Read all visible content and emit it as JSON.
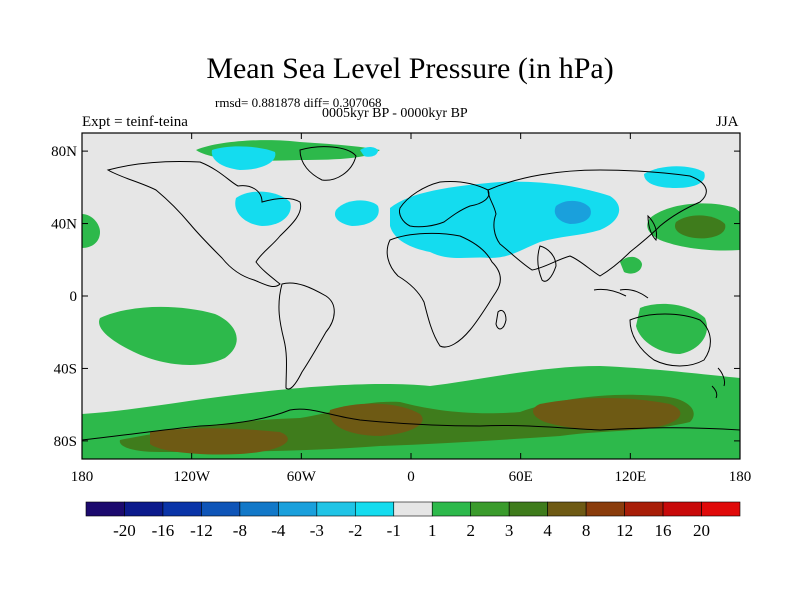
{
  "title": "Mean Sea Level Pressure (in hPa)",
  "stats_text": "rmsd= 0.881878 diff= 0.307068",
  "subtitle": "0005kyr BP - 0000kyr BP",
  "experiment_label": "Expt = teinf-teina",
  "season": "JJA",
  "lat_ticks": [
    "80N",
    "40N",
    "0",
    "40S",
    "80S"
  ],
  "lon_ticks": [
    "180",
    "120W",
    "60W",
    "0",
    "60E",
    "120E",
    "180"
  ],
  "colorbar": {
    "labels": [
      "-20",
      "-16",
      "-12",
      "-8",
      "-4",
      "-3",
      "-2",
      "-1",
      "1",
      "2",
      "3",
      "4",
      "8",
      "12",
      "16",
      "20"
    ],
    "colors": [
      "#1c0a6e",
      "#0c1a8c",
      "#0a34a8",
      "#0f55b8",
      "#1278c8",
      "#1aa0dc",
      "#20c4e6",
      "#14dcef",
      "#e6e6e6",
      "#2db94b",
      "#3a9b2c",
      "#3f7c1c",
      "#6e5a14",
      "#8a3c0c",
      "#a81e08",
      "#c80a0a",
      "#e00a0a"
    ]
  }
}
